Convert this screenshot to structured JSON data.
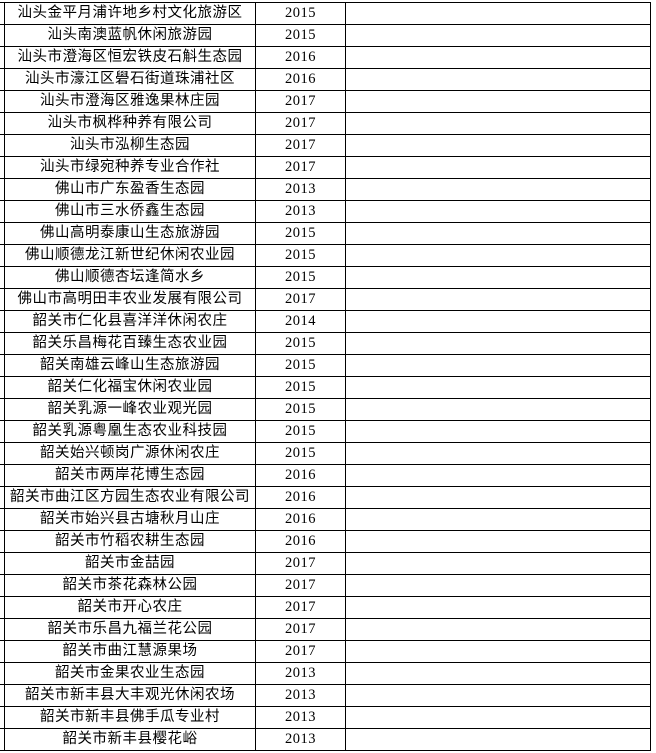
{
  "colors": {
    "background": "#ffffff",
    "border": "#000000",
    "text": "#000000"
  },
  "table": {
    "columns": [
      {
        "key": "name",
        "role": "site-name"
      },
      {
        "key": "year",
        "role": "designation-year"
      },
      {
        "key": "blank",
        "role": "empty-column"
      }
    ],
    "rows": [
      {
        "name": "汕头金平月浦许地乡村文化旅游区",
        "year": "2015",
        "blank": ""
      },
      {
        "name": "汕头南澳蓝帆休闲旅游园",
        "year": "2015",
        "blank": ""
      },
      {
        "name": "汕头市澄海区恒宏铁皮石斛生态园",
        "year": "2016",
        "blank": ""
      },
      {
        "name": "汕头市濠江区礐石街道珠浦社区",
        "year": "2016",
        "blank": ""
      },
      {
        "name": "汕头市澄海区雅逸果林庄园",
        "year": "2017",
        "blank": ""
      },
      {
        "name": "汕头市枫桦种养有限公司",
        "year": "2017",
        "blank": ""
      },
      {
        "name": "汕头市泓柳生态园",
        "year": "2017",
        "blank": ""
      },
      {
        "name": "汕头市绿宛种养专业合作社",
        "year": "2017",
        "blank": ""
      },
      {
        "name": "佛山市广东盈香生态园",
        "year": "2013",
        "blank": ""
      },
      {
        "name": "佛山市三水侨鑫生态园",
        "year": "2013",
        "blank": ""
      },
      {
        "name": "佛山高明泰康山生态旅游园",
        "year": "2015",
        "blank": ""
      },
      {
        "name": "佛山顺德龙江新世纪休闲农业园",
        "year": "2015",
        "blank": ""
      },
      {
        "name": "佛山顺德杏坛逢简水乡",
        "year": "2015",
        "blank": ""
      },
      {
        "name": "佛山市高明田丰农业发展有限公司",
        "year": "2017",
        "blank": ""
      },
      {
        "name": "韶关市仁化县喜洋洋休闲农庄",
        "year": "2014",
        "blank": ""
      },
      {
        "name": "韶关乐昌梅花百臻生态农业园",
        "year": "2015",
        "blank": ""
      },
      {
        "name": "韶关南雄云峰山生态旅游园",
        "year": "2015",
        "blank": ""
      },
      {
        "name": "韶关仁化福宝休闲农业园",
        "year": "2015",
        "blank": ""
      },
      {
        "name": "韶关乳源一峰农业观光园",
        "year": "2015",
        "blank": ""
      },
      {
        "name": "韶关乳源粤凰生态农业科技园",
        "year": "2015",
        "blank": ""
      },
      {
        "name": "韶关始兴顿岗广源休闲农庄",
        "year": "2015",
        "blank": ""
      },
      {
        "name": "韶关市两岸花博生态园",
        "year": "2016",
        "blank": ""
      },
      {
        "name": "韶关市曲江区方园生态农业有限公司",
        "year": "2016",
        "blank": ""
      },
      {
        "name": "韶关市始兴县古塘秋月山庄",
        "year": "2016",
        "blank": ""
      },
      {
        "name": "韶关市竹稻农耕生态园",
        "year": "2016",
        "blank": ""
      },
      {
        "name": "韶关市金喆园",
        "year": "2017",
        "blank": ""
      },
      {
        "name": "韶关市茶花森林公园",
        "year": "2017",
        "blank": ""
      },
      {
        "name": "韶关市开心农庄",
        "year": "2017",
        "blank": ""
      },
      {
        "name": "韶关市乐昌九福兰花公园",
        "year": "2017",
        "blank": ""
      },
      {
        "name": "韶关市曲江慧源果场",
        "year": "2017",
        "blank": ""
      },
      {
        "name": "韶关市金果农业生态园",
        "year": "2013",
        "blank": ""
      },
      {
        "name": "韶关市新丰县大丰观光休闲农场",
        "year": "2013",
        "blank": ""
      },
      {
        "name": "韶关市新丰县佛手瓜专业村",
        "year": "2013",
        "blank": ""
      },
      {
        "name": "韶关市新丰县樱花峪",
        "year": "2013",
        "blank": ""
      }
    ]
  }
}
